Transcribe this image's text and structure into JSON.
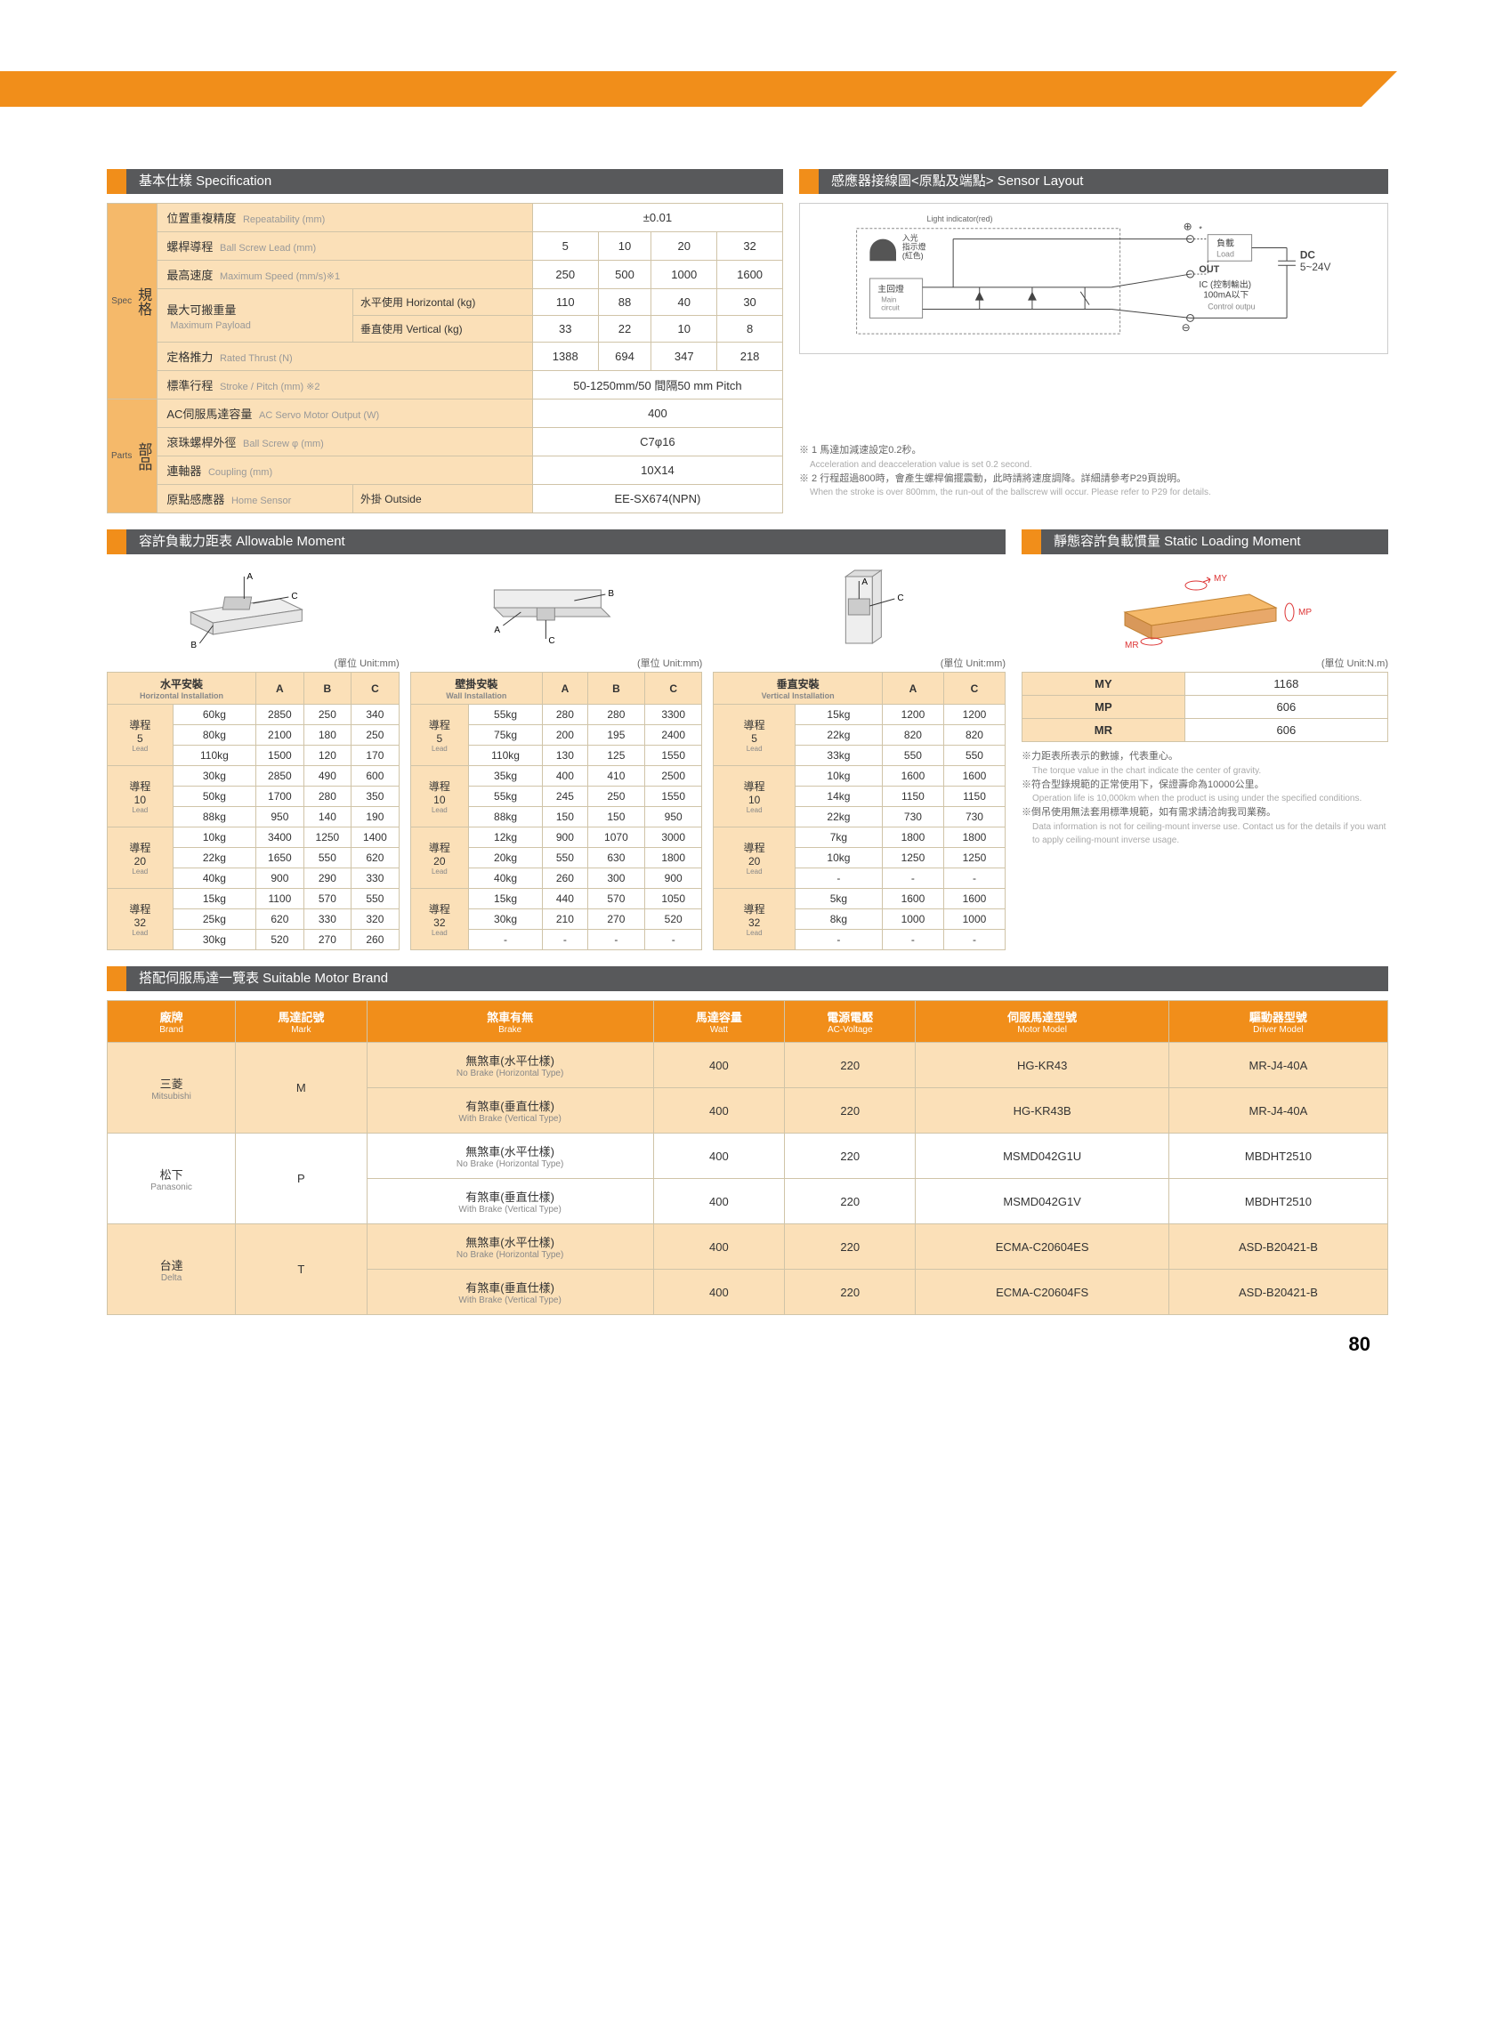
{
  "colors": {
    "orange": "#f18e1a",
    "lightOrange": "#fbe0b8",
    "midOrange": "#f5b96a",
    "gray": "#58595b",
    "border": "#d0c4a8"
  },
  "pageNum": "80",
  "spec": {
    "header": "基本仕樣  Specification",
    "sideSpec": "規格",
    "sideSpecEn": "Spec",
    "sideParts": "部品",
    "sidePartsEn": "Parts",
    "rows": {
      "repeat": {
        "zh": "位置重複精度",
        "en": "Repeatability (mm)",
        "val": "±0.01"
      },
      "lead": {
        "zh": "螺桿導程",
        "en": "Ball Screw Lead (mm)",
        "vals": [
          "5",
          "10",
          "20",
          "32"
        ]
      },
      "speed": {
        "zh": "最高速度",
        "en": "Maximum Speed (mm/s)※1",
        "vals": [
          "250",
          "500",
          "1000",
          "1600"
        ]
      },
      "payload": {
        "zh": "最大可搬重量",
        "en": "Maximum Payload"
      },
      "horiz": {
        "zh": "水平使用",
        "en": "Horizontal (kg)",
        "vals": [
          "110",
          "88",
          "40",
          "30"
        ]
      },
      "vert": {
        "zh": "垂直使用",
        "en": "Vertical (kg)",
        "vals": [
          "33",
          "22",
          "10",
          "8"
        ]
      },
      "thrust": {
        "zh": "定格推力",
        "en": "Rated Thrust (N)",
        "vals": [
          "1388",
          "694",
          "347",
          "218"
        ]
      },
      "stroke": {
        "zh": "標準行程",
        "en": "Stroke / Pitch (mm)  ※2",
        "val": "50-1250mm/50 間隔50 mm Pitch"
      },
      "motor": {
        "zh": "AC伺服馬達容量",
        "en": "AC Servo Motor Output (W)",
        "val": "400"
      },
      "screw": {
        "zh": "滾珠螺桿外徑",
        "en": "Ball Screw φ  (mm)",
        "val": "C7φ16"
      },
      "coupling": {
        "zh": "連軸器",
        "en": "Coupling (mm)",
        "val": "10X14"
      },
      "home": {
        "zh": "原點感應器",
        "en": "Home Sensor",
        "sub": "外掛 Outside",
        "val": "EE-SX674(NPN)"
      }
    }
  },
  "sensor": {
    "header": "感應器接線圖<原點及端點> Sensor Layout",
    "labels": {
      "light": "Light indicator(red)",
      "led": "入光\n指示燈\n(紅色)",
      "main": "主回燈",
      "mainEn": "Main\ncircuit",
      "load": "負載\nLoad",
      "out": "OUT",
      "ic": "IC (控制輸出)\n100mA以下",
      "ctrl": "Control outpu",
      "dc": "DC\n5~24V"
    },
    "notes": [
      {
        "zh": "※ 1 馬達加減速設定0.2秒。",
        "en": "Acceleration and deacceleration value is set 0.2 second."
      },
      {
        "zh": "※ 2 行程超過800時，會產生螺桿偏擺震動，此時請將速度調降。詳細請參考P29頁說明。",
        "en": "When the stroke is over 800mm, the run-out of the ballscrew will occur. Please refer to P29 for details."
      }
    ]
  },
  "allowableMoment": {
    "header": "容許負載力距表  Allowable Moment",
    "unit": "(單位  Unit:mm)",
    "tables": [
      {
        "title": "水平安裝",
        "titleEn": "Horizontal Installation",
        "cols": [
          "A",
          "B",
          "C"
        ],
        "groups": [
          {
            "lead": "導程\n5",
            "leadEn": "Lead",
            "rows": [
              [
                "60kg",
                "2850",
                "250",
                "340"
              ],
              [
                "80kg",
                "2100",
                "180",
                "250"
              ],
              [
                "110kg",
                "1500",
                "120",
                "170"
              ]
            ]
          },
          {
            "lead": "導程\n10",
            "leadEn": "Lead",
            "rows": [
              [
                "30kg",
                "2850",
                "490",
                "600"
              ],
              [
                "50kg",
                "1700",
                "280",
                "350"
              ],
              [
                "88kg",
                "950",
                "140",
                "190"
              ]
            ]
          },
          {
            "lead": "導程\n20",
            "leadEn": "Lead",
            "rows": [
              [
                "10kg",
                "3400",
                "1250",
                "1400"
              ],
              [
                "22kg",
                "1650",
                "550",
                "620"
              ],
              [
                "40kg",
                "900",
                "290",
                "330"
              ]
            ]
          },
          {
            "lead": "導程\n32",
            "leadEn": "Lead",
            "rows": [
              [
                "15kg",
                "1100",
                "570",
                "550"
              ],
              [
                "25kg",
                "620",
                "330",
                "320"
              ],
              [
                "30kg",
                "520",
                "270",
                "260"
              ]
            ]
          }
        ]
      },
      {
        "title": "壁掛安裝",
        "titleEn": "Wall Installation",
        "cols": [
          "A",
          "B",
          "C"
        ],
        "groups": [
          {
            "lead": "導程\n5",
            "leadEn": "Lead",
            "rows": [
              [
                "55kg",
                "280",
                "280",
                "3300"
              ],
              [
                "75kg",
                "200",
                "195",
                "2400"
              ],
              [
                "110kg",
                "130",
                "125",
                "1550"
              ]
            ]
          },
          {
            "lead": "導程\n10",
            "leadEn": "Lead",
            "rows": [
              [
                "35kg",
                "400",
                "410",
                "2500"
              ],
              [
                "55kg",
                "245",
                "250",
                "1550"
              ],
              [
                "88kg",
                "150",
                "150",
                "950"
              ]
            ]
          },
          {
            "lead": "導程\n20",
            "leadEn": "Lead",
            "rows": [
              [
                "12kg",
                "900",
                "1070",
                "3000"
              ],
              [
                "20kg",
                "550",
                "630",
                "1800"
              ],
              [
                "40kg",
                "260",
                "300",
                "900"
              ]
            ]
          },
          {
            "lead": "導程\n32",
            "leadEn": "Lead",
            "rows": [
              [
                "15kg",
                "440",
                "570",
                "1050"
              ],
              [
                "30kg",
                "210",
                "270",
                "520"
              ],
              [
                "-",
                "-",
                "-",
                "-"
              ]
            ]
          }
        ]
      },
      {
        "title": "垂直安裝",
        "titleEn": "Vertical Installation",
        "cols": [
          "A",
          "C"
        ],
        "groups": [
          {
            "lead": "導程\n5",
            "leadEn": "Lead",
            "rows": [
              [
                "15kg",
                "1200",
                "1200"
              ],
              [
                "22kg",
                "820",
                "820"
              ],
              [
                "33kg",
                "550",
                "550"
              ]
            ]
          },
          {
            "lead": "導程\n10",
            "leadEn": "Lead",
            "rows": [
              [
                "10kg",
                "1600",
                "1600"
              ],
              [
                "14kg",
                "1150",
                "1150"
              ],
              [
                "22kg",
                "730",
                "730"
              ]
            ]
          },
          {
            "lead": "導程\n20",
            "leadEn": "Lead",
            "rows": [
              [
                "7kg",
                "1800",
                "1800"
              ],
              [
                "10kg",
                "1250",
                "1250"
              ],
              [
                "-",
                "-",
                "-"
              ]
            ]
          },
          {
            "lead": "導程\n32",
            "leadEn": "Lead",
            "rows": [
              [
                "5kg",
                "1600",
                "1600"
              ],
              [
                "8kg",
                "1000",
                "1000"
              ],
              [
                "-",
                "-",
                "-"
              ]
            ]
          }
        ]
      }
    ]
  },
  "slm": {
    "header": "靜態容許負載慣量  Static Loading Moment",
    "unit": "(單位  Unit:N.m)",
    "rows": [
      [
        "MY",
        "1168"
      ],
      [
        "MP",
        "606"
      ],
      [
        "MR",
        "606"
      ]
    ],
    "notes": [
      {
        "zh": "※力距表所表示的數據，代表重心。",
        "en": "The torque value in the chart indicate the center of gravity."
      },
      {
        "zh": "※符合型錄規範的正常使用下，保證壽命為10000公里。",
        "en": "Operation life is 10,000km when the product is using under the specified conditions."
      },
      {
        "zh": "※倒吊使用無法套用標準規範，如有需求請洽詢我司業務。",
        "en": "Data information is not for ceiling-mount inverse use. Contact us for the details if you want to apply ceiling-mount inverse usage."
      }
    ]
  },
  "motorBrand": {
    "header": "搭配伺服馬達一覽表  Suitable Motor Brand",
    "heads": [
      {
        "zh": "廠牌",
        "en": "Brand"
      },
      {
        "zh": "馬達記號",
        "en": "Mark"
      },
      {
        "zh": "煞車有無",
        "en": "Brake"
      },
      {
        "zh": "馬達容量",
        "en": "Watt"
      },
      {
        "zh": "電源電壓",
        "en": "AC-Voltage"
      },
      {
        "zh": "伺服馬達型號",
        "en": "Motor Model"
      },
      {
        "zh": "驅動器型號",
        "en": "Driver Model"
      }
    ],
    "brakeNo": {
      "zh": "無煞車(水平仕樣)",
      "en": "No Brake (Horizontal Type)"
    },
    "brakeYes": {
      "zh": "有煞車(垂直仕樣)",
      "en": "With Brake (Vertical Type)"
    },
    "rows": [
      {
        "brand": "三菱",
        "brandEn": "Mitsubishi",
        "mark": "M",
        "sub": [
          {
            "bt": "no",
            "watt": "400",
            "volt": "220",
            "model": "HG-KR43",
            "driver": "MR-J4-40A"
          },
          {
            "bt": "yes",
            "watt": "400",
            "volt": "220",
            "model": "HG-KR43B",
            "driver": "MR-J4-40A"
          }
        ]
      },
      {
        "brand": "松下",
        "brandEn": "Panasonic",
        "mark": "P",
        "sub": [
          {
            "bt": "no",
            "watt": "400",
            "volt": "220",
            "model": "MSMD042G1U",
            "driver": "MBDHT2510"
          },
          {
            "bt": "yes",
            "watt": "400",
            "volt": "220",
            "model": "MSMD042G1V",
            "driver": "MBDHT2510"
          }
        ]
      },
      {
        "brand": "台達",
        "brandEn": "Delta",
        "mark": "T",
        "sub": [
          {
            "bt": "no",
            "watt": "400",
            "volt": "220",
            "model": "ECMA-C20604ES",
            "driver": "ASD-B20421-B"
          },
          {
            "bt": "yes",
            "watt": "400",
            "volt": "220",
            "model": "ECMA-C20604FS",
            "driver": "ASD-B20421-B"
          }
        ]
      }
    ]
  }
}
